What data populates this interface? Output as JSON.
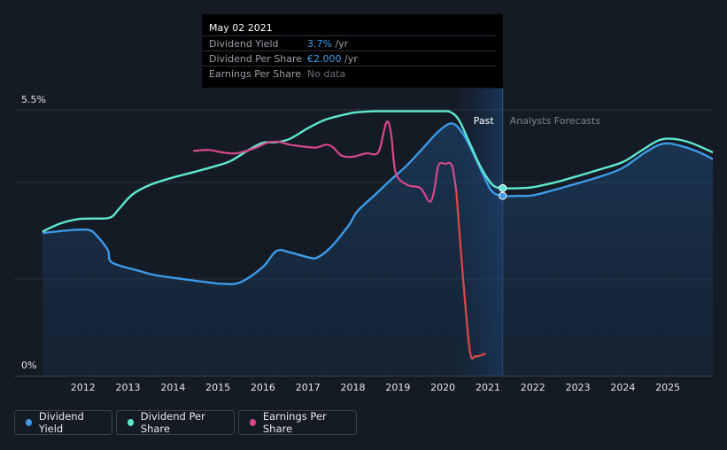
{
  "tooltip": {
    "date": "May 02 2021",
    "rows": [
      {
        "label": "Dividend Yield",
        "value": "3.7%",
        "unit": " /yr",
        "color": "#3ea0f0"
      },
      {
        "label": "Dividend Per Share",
        "value": "€2.000",
        "unit": " /yr",
        "color": "#3ea0f0"
      },
      {
        "label": "Earnings Per Share",
        "value": "No data",
        "unit": "",
        "color": "#6b717a"
      }
    ]
  },
  "legend": [
    {
      "label": "Dividend Yield",
      "color": "#3c9ae8"
    },
    {
      "label": "Dividend Per Share",
      "color": "#5ee8cf"
    },
    {
      "label": "Earnings Per Share",
      "color": "#d8488a"
    }
  ],
  "chart_data": {
    "type": "line",
    "y_ticks": [
      "5.5%",
      "0%"
    ],
    "ylim": [
      0,
      5.5
    ],
    "x_ticks": [
      "2012",
      "2013",
      "2014",
      "2015",
      "2016",
      "2017",
      "2018",
      "2019",
      "2020",
      "2021",
      "2022",
      "2023",
      "2024",
      "2025"
    ],
    "xlim": [
      2011.1,
      2026.0
    ],
    "divider_x": 2021.33,
    "past_label": "Past",
    "forecast_label": "Analysts Forecasts",
    "series": [
      {
        "name": "Dividend Yield",
        "color": "#3c9ae8",
        "points": [
          [
            2011.1,
            2.95
          ],
          [
            2011.6,
            3.0
          ],
          [
            2012.1,
            3.02
          ],
          [
            2012.3,
            2.9
          ],
          [
            2012.55,
            2.6
          ],
          [
            2012.6,
            2.38
          ],
          [
            2012.8,
            2.28
          ],
          [
            2013.2,
            2.18
          ],
          [
            2013.6,
            2.08
          ],
          [
            2014.2,
            2.0
          ],
          [
            2014.7,
            1.94
          ],
          [
            2015.1,
            1.9
          ],
          [
            2015.5,
            1.93
          ],
          [
            2016.0,
            2.25
          ],
          [
            2016.3,
            2.58
          ],
          [
            2016.6,
            2.55
          ],
          [
            2017.0,
            2.45
          ],
          [
            2017.2,
            2.44
          ],
          [
            2017.5,
            2.65
          ],
          [
            2017.9,
            3.1
          ],
          [
            2018.1,
            3.4
          ],
          [
            2018.5,
            3.75
          ],
          [
            2018.9,
            4.1
          ],
          [
            2019.2,
            4.35
          ],
          [
            2019.6,
            4.75
          ],
          [
            2019.9,
            5.05
          ],
          [
            2020.2,
            5.22
          ],
          [
            2020.45,
            5.0
          ],
          [
            2020.7,
            4.55
          ],
          [
            2020.95,
            4.05
          ],
          [
            2021.1,
            3.8
          ],
          [
            2021.33,
            3.72
          ],
          [
            2021.7,
            3.72
          ],
          [
            2022.0,
            3.73
          ],
          [
            2022.5,
            3.85
          ],
          [
            2023.0,
            3.98
          ],
          [
            2023.5,
            4.12
          ],
          [
            2024.0,
            4.3
          ],
          [
            2024.5,
            4.62
          ],
          [
            2024.9,
            4.8
          ],
          [
            2025.3,
            4.75
          ],
          [
            2025.7,
            4.62
          ],
          [
            2026.0,
            4.48
          ]
        ]
      },
      {
        "name": "Dividend Per Share",
        "color": "#5ee8cf",
        "points": [
          [
            2011.1,
            2.98
          ],
          [
            2011.5,
            3.15
          ],
          [
            2011.9,
            3.24
          ],
          [
            2012.2,
            3.25
          ],
          [
            2012.6,
            3.27
          ],
          [
            2012.8,
            3.45
          ],
          [
            2013.1,
            3.75
          ],
          [
            2013.5,
            3.95
          ],
          [
            2014.0,
            4.1
          ],
          [
            2014.5,
            4.22
          ],
          [
            2015.0,
            4.35
          ],
          [
            2015.3,
            4.45
          ],
          [
            2015.7,
            4.68
          ],
          [
            2016.0,
            4.82
          ],
          [
            2016.3,
            4.83
          ],
          [
            2016.6,
            4.9
          ],
          [
            2017.0,
            5.12
          ],
          [
            2017.4,
            5.3
          ],
          [
            2017.9,
            5.42
          ],
          [
            2018.1,
            5.45
          ],
          [
            2018.5,
            5.47
          ],
          [
            2019.0,
            5.47
          ],
          [
            2019.5,
            5.47
          ],
          [
            2020.0,
            5.47
          ],
          [
            2020.15,
            5.46
          ],
          [
            2020.35,
            5.3
          ],
          [
            2020.6,
            4.8
          ],
          [
            2020.85,
            4.3
          ],
          [
            2021.1,
            3.95
          ],
          [
            2021.33,
            3.88
          ],
          [
            2021.7,
            3.88
          ],
          [
            2022.0,
            3.9
          ],
          [
            2022.5,
            4.0
          ],
          [
            2023.0,
            4.13
          ],
          [
            2023.5,
            4.27
          ],
          [
            2024.0,
            4.42
          ],
          [
            2024.4,
            4.65
          ],
          [
            2024.8,
            4.87
          ],
          [
            2025.1,
            4.9
          ],
          [
            2025.5,
            4.82
          ],
          [
            2026.0,
            4.62
          ]
        ]
      },
      {
        "name": "Earnings Per Share",
        "color": "#d8488a",
        "points": [
          [
            2014.45,
            4.65
          ],
          [
            2014.8,
            4.67
          ],
          [
            2015.1,
            4.62
          ],
          [
            2015.4,
            4.6
          ],
          [
            2015.8,
            4.7
          ],
          [
            2016.1,
            4.82
          ],
          [
            2016.35,
            4.84
          ],
          [
            2016.6,
            4.78
          ],
          [
            2017.0,
            4.73
          ],
          [
            2017.2,
            4.72
          ],
          [
            2017.4,
            4.78
          ],
          [
            2017.55,
            4.73
          ],
          [
            2017.75,
            4.55
          ],
          [
            2018.0,
            4.53
          ],
          [
            2018.3,
            4.6
          ],
          [
            2018.5,
            4.58
          ],
          [
            2018.6,
            4.7
          ],
          [
            2018.75,
            5.25
          ],
          [
            2018.85,
            5.0
          ],
          [
            2018.95,
            4.2
          ],
          [
            2019.2,
            3.95
          ],
          [
            2019.5,
            3.88
          ],
          [
            2019.7,
            3.6
          ],
          [
            2019.8,
            3.8
          ],
          [
            2019.9,
            4.35
          ],
          [
            2020.05,
            4.38
          ],
          [
            2020.2,
            4.35
          ],
          [
            2020.3,
            3.8
          ],
          [
            2020.45,
            2.0
          ],
          [
            2020.6,
            0.5
          ],
          [
            2020.72,
            0.4
          ],
          [
            2020.85,
            0.42
          ],
          [
            2020.95,
            0.46
          ]
        ],
        "past_color": "#c83a6e",
        "fade_from": 2020.3,
        "fade_color": "#e04848"
      }
    ],
    "highlight_points": [
      {
        "series": "Dividend Per Share",
        "x": 2021.33,
        "y": 3.88
      },
      {
        "series": "Dividend Yield",
        "x": 2021.33,
        "y": 3.72
      }
    ]
  }
}
